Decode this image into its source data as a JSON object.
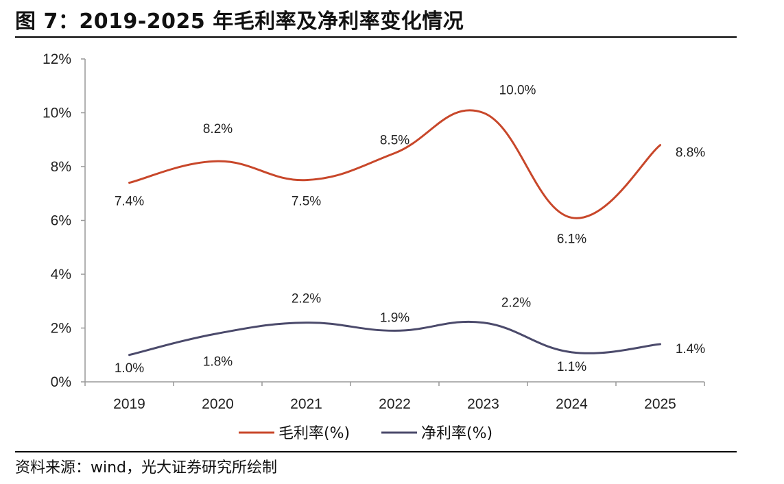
{
  "figure": {
    "title": "图 7：2019-2025 年毛利率及净利率变化情况",
    "source": "资料来源：wind，光大证券研究所绘制"
  },
  "chart_data": {
    "type": "line",
    "categories": [
      "2019",
      "2020",
      "2021",
      "2022",
      "2023",
      "2024",
      "2025"
    ],
    "y_ticks": [
      "0%",
      "2%",
      "4%",
      "6%",
      "8%",
      "10%",
      "12%"
    ],
    "ylim": [
      0,
      12
    ],
    "grid": false,
    "legend_position": "bottom",
    "series": [
      {
        "name": "毛利率(%)",
        "color": "#c8472a",
        "values": [
          7.4,
          8.2,
          7.5,
          8.5,
          10.0,
          6.1,
          8.8
        ],
        "labels": [
          "7.4%",
          "8.2%",
          "7.5%",
          "8.5%",
          "10.0%",
          "6.1%",
          "8.8%"
        ]
      },
      {
        "name": "净利率(%)",
        "color": "#4b4a6b",
        "values": [
          1.0,
          1.8,
          2.2,
          1.9,
          2.2,
          1.1,
          1.4
        ],
        "labels": [
          "1.0%",
          "1.8%",
          "2.2%",
          "1.9%",
          "2.2%",
          "1.1%",
          "1.4%"
        ]
      }
    ]
  }
}
